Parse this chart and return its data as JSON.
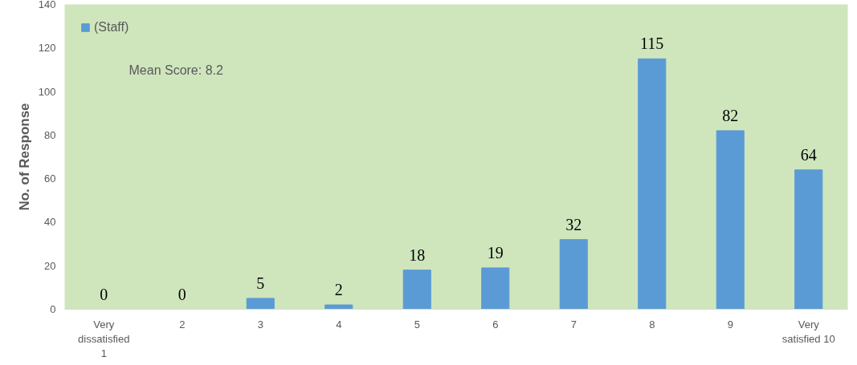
{
  "chart_data": {
    "type": "bar",
    "ylabel": "No. of Response",
    "categories": [
      "Very dissatisfied 1",
      "2",
      "3",
      "4",
      "5",
      "6",
      "7",
      "8",
      "9",
      "Very satisfied 10"
    ],
    "series": [
      {
        "name": "(Staff)",
        "color": "#5b9bd5",
        "values": [
          0,
          0,
          5,
          2,
          18,
          19,
          32,
          115,
          82,
          64
        ]
      }
    ],
    "ylim": [
      0,
      140
    ],
    "yticks": [
      0,
      20,
      40,
      60,
      80,
      100,
      120,
      140
    ],
    "data_labels": true,
    "legend": "top left",
    "grid": false,
    "annotations": [
      "Mean Score: 8.2"
    ]
  }
}
